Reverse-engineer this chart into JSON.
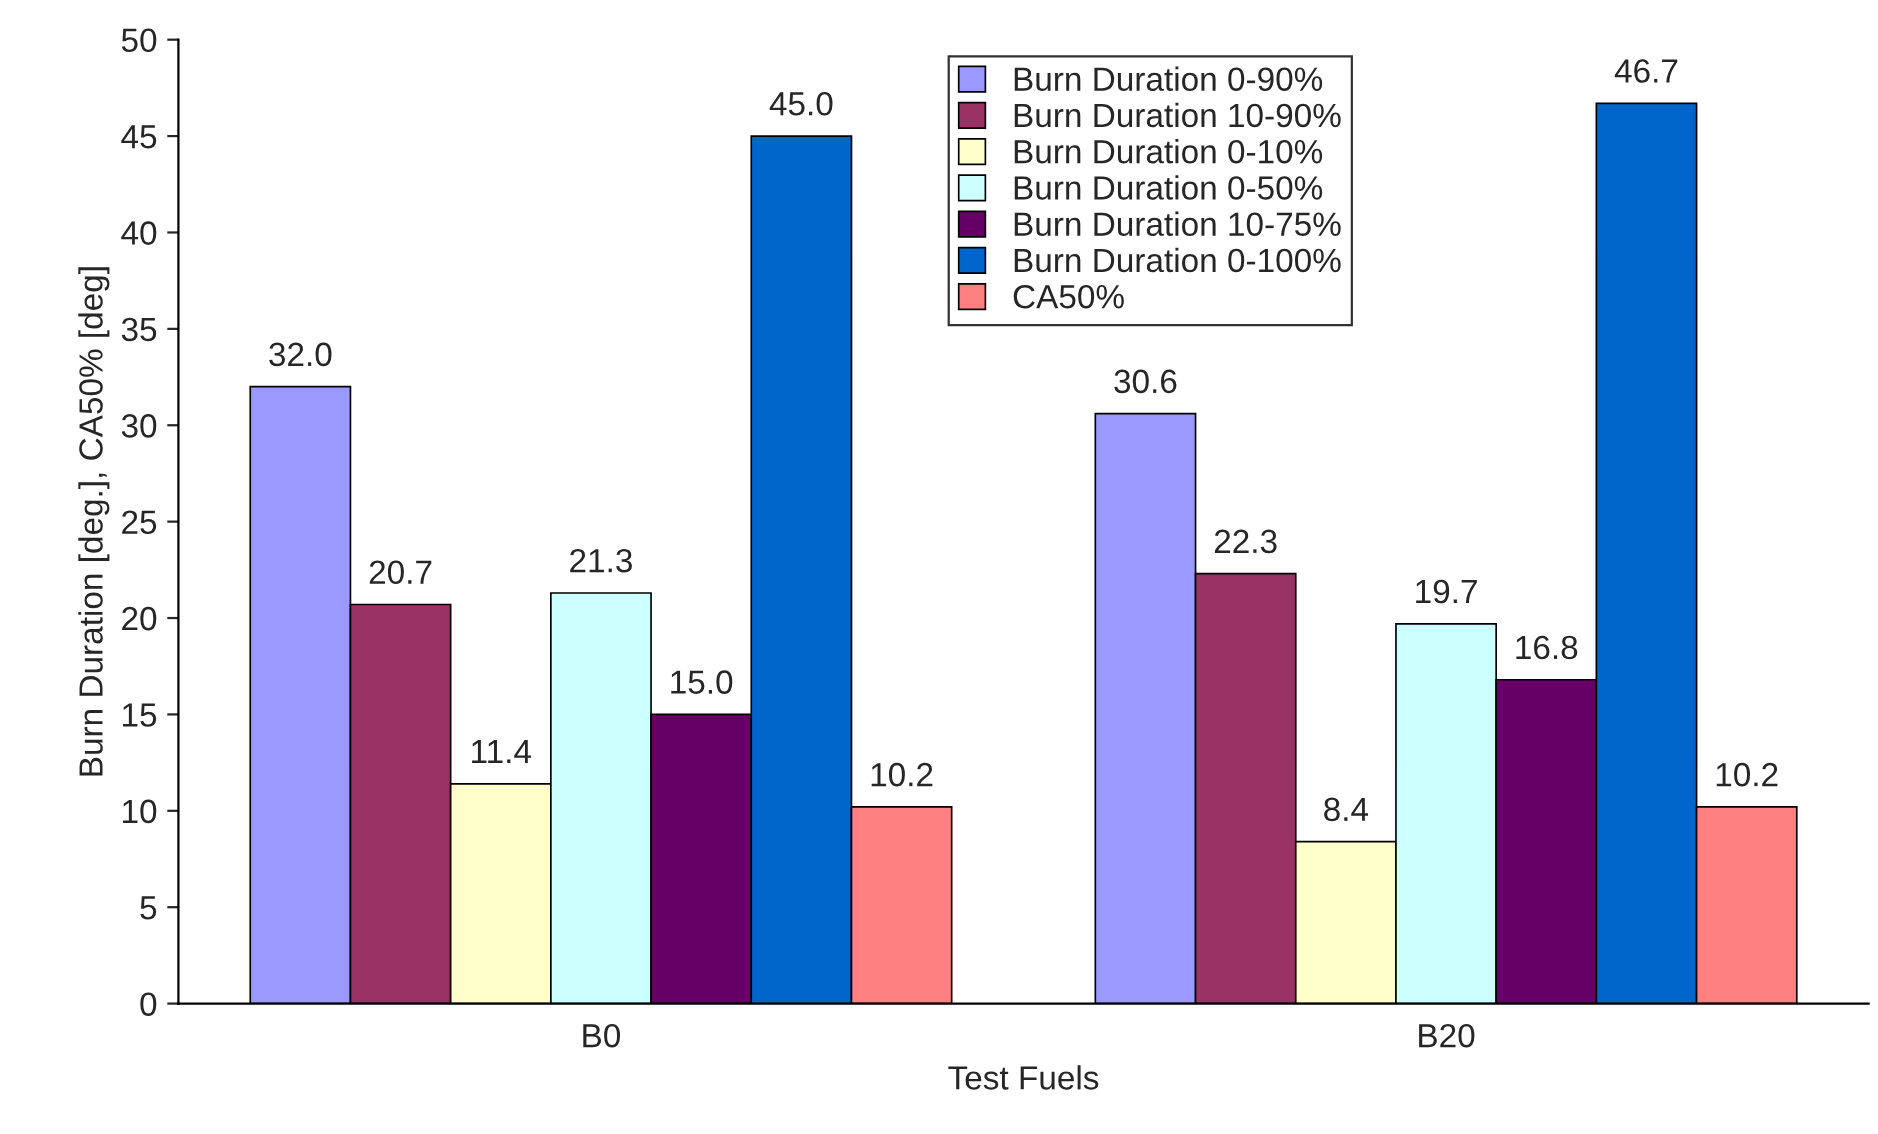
{
  "chart_data": {
    "type": "bar",
    "xlabel": "Test Fuels",
    "ylabel": "Burn Duration [deg.], CA50% [deg]",
    "categories": [
      "B0",
      "B20"
    ],
    "series": [
      {
        "name": "Burn Duration 0-90%",
        "color": "#9999ff",
        "values": [
          32.0,
          30.6
        ],
        "value_labels": [
          "32.0",
          "30.6"
        ]
      },
      {
        "name": "Burn Duration 10-90%",
        "color": "#993366",
        "values": [
          20.7,
          22.3
        ],
        "value_labels": [
          "20.7",
          "22.3"
        ]
      },
      {
        "name": "Burn Duration 0-10%",
        "color": "#ffffcc",
        "values": [
          11.4,
          8.4
        ],
        "value_labels": [
          "11.4",
          "8.4"
        ]
      },
      {
        "name": "Burn Duration 0-50%",
        "color": "#ccffff",
        "values": [
          21.3,
          19.7
        ],
        "value_labels": [
          "21.3",
          "19.7"
        ]
      },
      {
        "name": "Burn Duration 10-75%",
        "color": "#660066",
        "values": [
          15.0,
          16.8
        ],
        "value_labels": [
          "15.0",
          "16.8"
        ]
      },
      {
        "name": "Burn Duration 0-100%",
        "color": "#0066cc",
        "values": [
          45.0,
          46.7
        ],
        "value_labels": [
          "45.0",
          "46.7"
        ]
      },
      {
        "name": "CA50%",
        "color": "#ff8080",
        "values": [
          10.2,
          10.2
        ],
        "value_labels": [
          "10.2",
          "10.2"
        ]
      }
    ],
    "ylim": [
      0,
      50
    ],
    "yticks": [
      0,
      5,
      10,
      15,
      20,
      25,
      30,
      35,
      40,
      45,
      50
    ],
    "grid": false,
    "legend": "top"
  }
}
